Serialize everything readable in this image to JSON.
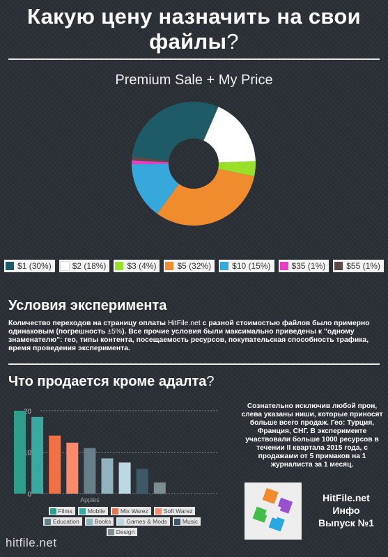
{
  "header": {
    "title_line1": "Какую цену назначить на свои",
    "title_line2": "файлы",
    "title_q": "?"
  },
  "pie_section": {
    "title": "Premium Sale + My Price"
  },
  "colors": {
    "s1": "#1f5a67",
    "s2": "#ffffff",
    "s3": "#9ae02a",
    "s5": "#f08c2e",
    "s10": "#37a8dc",
    "s35": "#e83fc2",
    "s55": "#5a4a48",
    "films": "#2e9d8c",
    "mobile": "#3aa9a0",
    "mix_warez": "#f07047",
    "soft_warez": "#fb8a6a",
    "education": "#677f88",
    "books": "#90b3bd",
    "games_mods": "#bcd8e2",
    "music": "#3e5865",
    "design": "#7c8d94"
  },
  "chart_data": [
    {
      "type": "pie",
      "title": "Premium Sale + My Price",
      "slices": [
        {
          "label": "$1 (30%)",
          "value": 30,
          "color": "#1f5a67"
        },
        {
          "label": "$2 (18%)",
          "value": 18,
          "color": "#ffffff"
        },
        {
          "label": "$3 (4%)",
          "value": 4,
          "color": "#9ae02a"
        },
        {
          "label": "$5 (32%)",
          "value": 32,
          "color": "#f08c2e"
        },
        {
          "label": "$10 (15%)",
          "value": 15,
          "color": "#37a8dc"
        },
        {
          "label": "$35 (1%)",
          "value": 1,
          "color": "#e83fc2"
        },
        {
          "label": "$55 (1%)",
          "value": 1,
          "color": "#5a4a48"
        }
      ],
      "legend": "bottom"
    },
    {
      "type": "bar",
      "categories": [
        "Apples"
      ],
      "ylim": [
        0,
        22
      ],
      "yticks": [
        0,
        10,
        20
      ],
      "grid": true,
      "legend": "bottom",
      "series": [
        {
          "name": "Films",
          "values": [
            20
          ],
          "color": "#2e9d8c"
        },
        {
          "name": "Mobile",
          "values": [
            18.5
          ],
          "color": "#3aa9a0"
        },
        {
          "name": "Mix Warez",
          "values": [
            14
          ],
          "color": "#f07047"
        },
        {
          "name": "Soft Warez",
          "values": [
            12.3
          ],
          "color": "#fb8a6a"
        },
        {
          "name": "Education",
          "values": [
            11
          ],
          "color": "#677f88"
        },
        {
          "name": "Books",
          "values": [
            8.5
          ],
          "color": "#90b3bd"
        },
        {
          "name": "Games & Mods",
          "values": [
            7.5
          ],
          "color": "#bcd8e2"
        },
        {
          "name": "Music",
          "values": [
            6
          ],
          "color": "#3e5865"
        },
        {
          "name": "Design",
          "values": [
            2.7
          ],
          "color": "#7c8d94"
        }
      ]
    }
  ],
  "conditions": {
    "heading": "Условия эксперимента",
    "text_a": "Количество переходов на страницу оплаты ",
    "text_site": "HitFile.net",
    "text_b": " с разной стоимостью файлов было примерно одинаковым (погрешность ",
    "text_pm": "±5%",
    "text_c": "). Все прочие условия были максимально приведены к \"одному знаменателю\": гео, типы контента, посещаемость ресурсов, покупательская способность трафика, время проведения эксперимента."
  },
  "sold": {
    "heading": "Что продается кроме адалта",
    "heading_q": "?",
    "side_text": "Сознательно исключив любой прон, слева указаны ниши, которые приносят больше всего продаж. Гео: Турция, Франция, СНГ. В эксперименте участвовали больше 1000 ресурсов в течении II квартала 2015 года, с продажами от 5 примаков на 1 журналиста за 1 месяц."
  },
  "badge": {
    "line1": "HitFile.net",
    "line2": "Инфо",
    "line3": "Выпуск №1"
  },
  "footer": {
    "watermark": "hitfile.net"
  }
}
